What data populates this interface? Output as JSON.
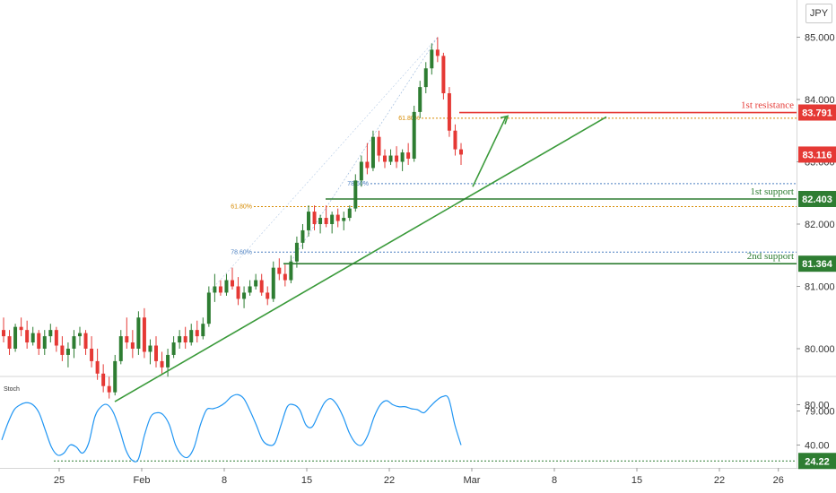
{
  "currency": "JPY",
  "stoch_label": "Stoch",
  "colors": {
    "up": "#2e7d32",
    "down": "#e53935",
    "resistance": "#e53935",
    "support": "#2e7d32",
    "trendline": "#3a9a3a",
    "stoch": "#2196f3",
    "fib_blue": "#4a7fc1",
    "fib_orange": "#d68a00"
  },
  "chart_data": [
    {
      "type": "candlestick",
      "title": "",
      "x_tick_labels": [
        "25",
        "Feb",
        "8",
        "15",
        "22",
        "Mar",
        "8",
        "15",
        "22",
        "26"
      ],
      "x_tick_days": [
        0,
        7,
        14,
        21,
        28,
        35,
        42,
        49,
        56,
        61
      ],
      "y_tick_labels": [
        "79.000",
        "80.000",
        "81.000",
        "82.000",
        "83.000",
        "84.000",
        "85.000"
      ],
      "ylim": [
        78.4,
        85.5
      ],
      "grid": false,
      "candles": [
        [
          80.3,
          80.5,
          80.1,
          80.2
        ],
        [
          80.2,
          80.3,
          79.9,
          80.0
        ],
        [
          80.0,
          80.4,
          79.95,
          80.35
        ],
        [
          80.35,
          80.5,
          80.2,
          80.3
        ],
        [
          80.3,
          80.45,
          80.0,
          80.1
        ],
        [
          80.1,
          80.35,
          80.05,
          80.25
        ],
        [
          80.25,
          80.3,
          79.9,
          80.0
        ],
        [
          80.0,
          80.3,
          79.9,
          80.2
        ],
        [
          80.2,
          80.4,
          80.1,
          80.3
        ],
        [
          80.3,
          80.35,
          79.95,
          80.05
        ],
        [
          80.05,
          80.2,
          79.8,
          79.9
        ],
        [
          79.9,
          80.1,
          79.7,
          80.0
        ],
        [
          80.0,
          80.3,
          79.85,
          80.2
        ],
        [
          80.2,
          80.35,
          80.05,
          80.25
        ],
        [
          80.25,
          80.3,
          79.9,
          80.0
        ],
        [
          80.0,
          80.2,
          79.7,
          79.8
        ],
        [
          79.8,
          80.0,
          79.5,
          79.6
        ],
        [
          79.6,
          79.75,
          79.3,
          79.4
        ],
        [
          79.4,
          79.55,
          79.2,
          79.3
        ],
        [
          79.3,
          79.9,
          79.25,
          79.8
        ],
        [
          79.8,
          80.3,
          79.75,
          80.2
        ],
        [
          80.2,
          80.5,
          80.0,
          80.1
        ],
        [
          80.1,
          80.3,
          79.85,
          80.0
        ],
        [
          80.0,
          80.6,
          79.9,
          80.5
        ],
        [
          80.5,
          80.65,
          79.85,
          79.95
        ],
        [
          79.95,
          80.15,
          79.75,
          80.05
        ],
        [
          80.05,
          80.2,
          79.7,
          79.8
        ],
        [
          79.8,
          79.95,
          79.6,
          79.7
        ],
        [
          79.7,
          80.0,
          79.55,
          79.9
        ],
        [
          79.9,
          80.2,
          79.85,
          80.1
        ],
        [
          80.1,
          80.3,
          80.0,
          80.2
        ],
        [
          80.2,
          80.35,
          80.0,
          80.1
        ],
        [
          80.1,
          80.4,
          80.05,
          80.3
        ],
        [
          80.3,
          80.45,
          80.1,
          80.2
        ],
        [
          80.2,
          80.5,
          80.15,
          80.4
        ],
        [
          80.4,
          81.0,
          80.35,
          80.9
        ],
        [
          80.9,
          81.2,
          80.75,
          81.0
        ],
        [
          81.0,
          81.1,
          80.85,
          80.9
        ],
        [
          80.9,
          81.2,
          80.85,
          81.1
        ],
        [
          81.1,
          81.3,
          80.95,
          81.0
        ],
        [
          81.0,
          81.15,
          80.7,
          80.8
        ],
        [
          80.8,
          81.0,
          80.65,
          80.9
        ],
        [
          80.9,
          81.1,
          80.85,
          81.0
        ],
        [
          81.0,
          81.2,
          80.95,
          81.1
        ],
        [
          81.1,
          81.2,
          80.85,
          80.9
        ],
        [
          80.9,
          81.0,
          80.7,
          80.8
        ],
        [
          80.8,
          81.4,
          80.75,
          81.3
        ],
        [
          81.3,
          81.45,
          81.1,
          81.2
        ],
        [
          81.2,
          81.35,
          81.0,
          81.1
        ],
        [
          81.1,
          81.5,
          81.05,
          81.4
        ],
        [
          81.4,
          81.8,
          81.3,
          81.7
        ],
        [
          81.7,
          82.0,
          81.6,
          81.9
        ],
        [
          81.9,
          82.3,
          81.8,
          82.2
        ],
        [
          82.2,
          82.3,
          81.9,
          82.0
        ],
        [
          82.0,
          82.15,
          81.85,
          82.1
        ],
        [
          82.1,
          82.3,
          81.95,
          82.0
        ],
        [
          82.0,
          82.2,
          81.85,
          82.15
        ],
        [
          82.15,
          82.25,
          81.95,
          82.05
        ],
        [
          82.05,
          82.2,
          81.9,
          82.1
        ],
        [
          82.1,
          82.3,
          82.05,
          82.25
        ],
        [
          82.25,
          82.8,
          82.2,
          82.7
        ],
        [
          82.7,
          83.1,
          82.6,
          83.0
        ],
        [
          83.0,
          83.3,
          82.8,
          82.9
        ],
        [
          82.9,
          83.5,
          82.85,
          83.4
        ],
        [
          83.4,
          83.5,
          83.0,
          83.1
        ],
        [
          83.1,
          83.2,
          82.9,
          83.0
        ],
        [
          83.0,
          83.2,
          82.95,
          83.1
        ],
        [
          83.1,
          83.25,
          82.9,
          83.0
        ],
        [
          83.0,
          83.2,
          82.85,
          83.15
        ],
        [
          83.15,
          83.3,
          82.95,
          83.05
        ],
        [
          83.05,
          83.9,
          83.0,
          83.8
        ],
        [
          83.8,
          84.3,
          83.7,
          84.2
        ],
        [
          84.2,
          84.6,
          84.1,
          84.5
        ],
        [
          84.5,
          84.9,
          84.4,
          84.8
        ],
        [
          84.8,
          85.0,
          84.6,
          84.7
        ],
        [
          84.7,
          84.75,
          84.0,
          84.1
        ],
        [
          84.1,
          84.2,
          83.4,
          83.5
        ],
        [
          83.5,
          83.6,
          83.1,
          83.2
        ],
        [
          83.2,
          83.3,
          82.95,
          83.116
        ]
      ],
      "stochastic": {
        "y_tick_labels": [
          "40.00",
          "80.00"
        ],
        "ylim": [
          15,
          105
        ],
        "current_label": "24.22",
        "values": [
          45,
          62,
          75,
          80,
          82,
          80,
          72,
          55,
          38,
          30,
          32,
          40,
          38,
          32,
          42,
          68,
          78,
          80,
          72,
          55,
          35,
          25,
          26,
          50,
          68,
          72,
          70,
          60,
          40,
          30,
          28,
          38,
          60,
          75,
          76,
          78,
          82,
          88,
          90,
          86,
          74,
          60,
          45,
          40,
          42,
          60,
          78,
          80,
          75,
          60,
          58,
          70,
          82,
          86,
          80,
          68,
          52,
          42,
          40,
          50,
          68,
          80,
          84,
          80,
          78,
          78,
          76,
          75,
          72,
          78,
          84,
          88,
          86,
          60,
          40
        ]
      },
      "horizontal_levels": [
        {
          "label": "1st resistance",
          "value": 83.791,
          "tag": "83.791",
          "color_key": "resistance"
        },
        {
          "label": "1st support",
          "value": 82.403,
          "tag": "82.403",
          "color_key": "support"
        },
        {
          "label": "2nd support",
          "value": 81.364,
          "tag": "81.364",
          "color_key": "support"
        }
      ],
      "current_price": {
        "value": 83.116,
        "tag": "83.116"
      },
      "fib_levels": [
        {
          "label": "61.80%",
          "value": 83.7,
          "color_key": "fib_orange"
        },
        {
          "label": "78.60%",
          "value": 82.65,
          "color_key": "fib_blue"
        },
        {
          "label": "61.80%",
          "value": 82.28,
          "color_key": "fib_orange"
        },
        {
          "label": "78.60%",
          "value": 81.55,
          "color_key": "fib_blue"
        }
      ]
    }
  ]
}
